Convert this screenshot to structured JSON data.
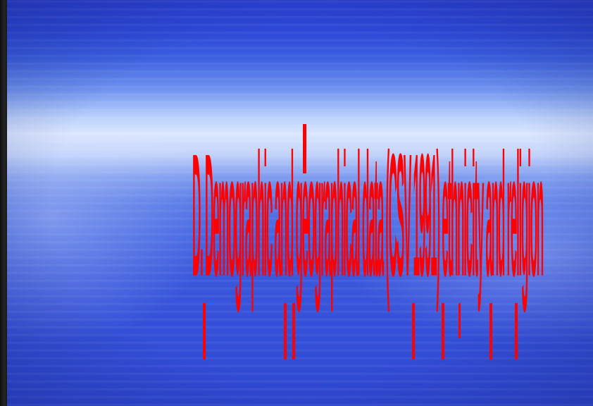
{
  "slide": {
    "title": "D. Demographic and geographical data (CSV 1991) ethnicity and religion",
    "text_color": "#ff0000",
    "background": "blue ocean gradient"
  }
}
